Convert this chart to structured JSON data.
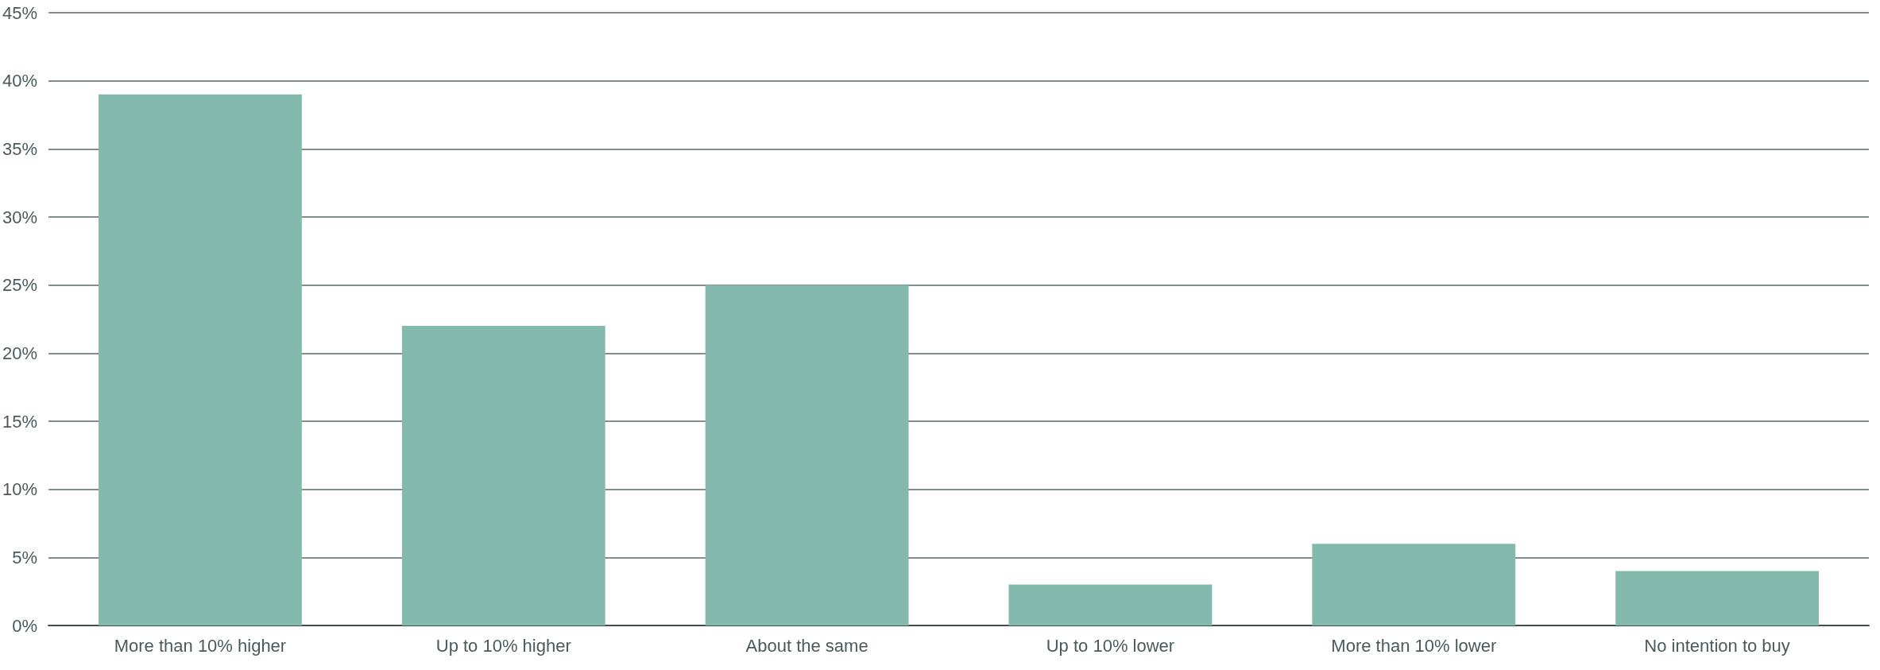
{
  "chart_data": {
    "type": "bar",
    "categories": [
      "More than 10% higher",
      "Up to 10% higher",
      "About the same",
      "Up to 10% lower",
      "More than 10% lower",
      "No intention to buy"
    ],
    "values": [
      39,
      22,
      25,
      3,
      6,
      4
    ],
    "color": "#83baad",
    "ylim": [
      0,
      45
    ],
    "yticks": [
      {
        "value": 0,
        "label": "0%"
      },
      {
        "value": 5,
        "label": "5%"
      },
      {
        "value": 10,
        "label": "10%"
      },
      {
        "value": 15,
        "label": "15%"
      },
      {
        "value": 20,
        "label": "20%"
      },
      {
        "value": 25,
        "label": "25%"
      },
      {
        "value": 30,
        "label": "30%"
      },
      {
        "value": 35,
        "label": "35%"
      },
      {
        "value": 40,
        "label": "40%"
      },
      {
        "value": 45,
        "label": "45%"
      }
    ],
    "grid": "y"
  }
}
